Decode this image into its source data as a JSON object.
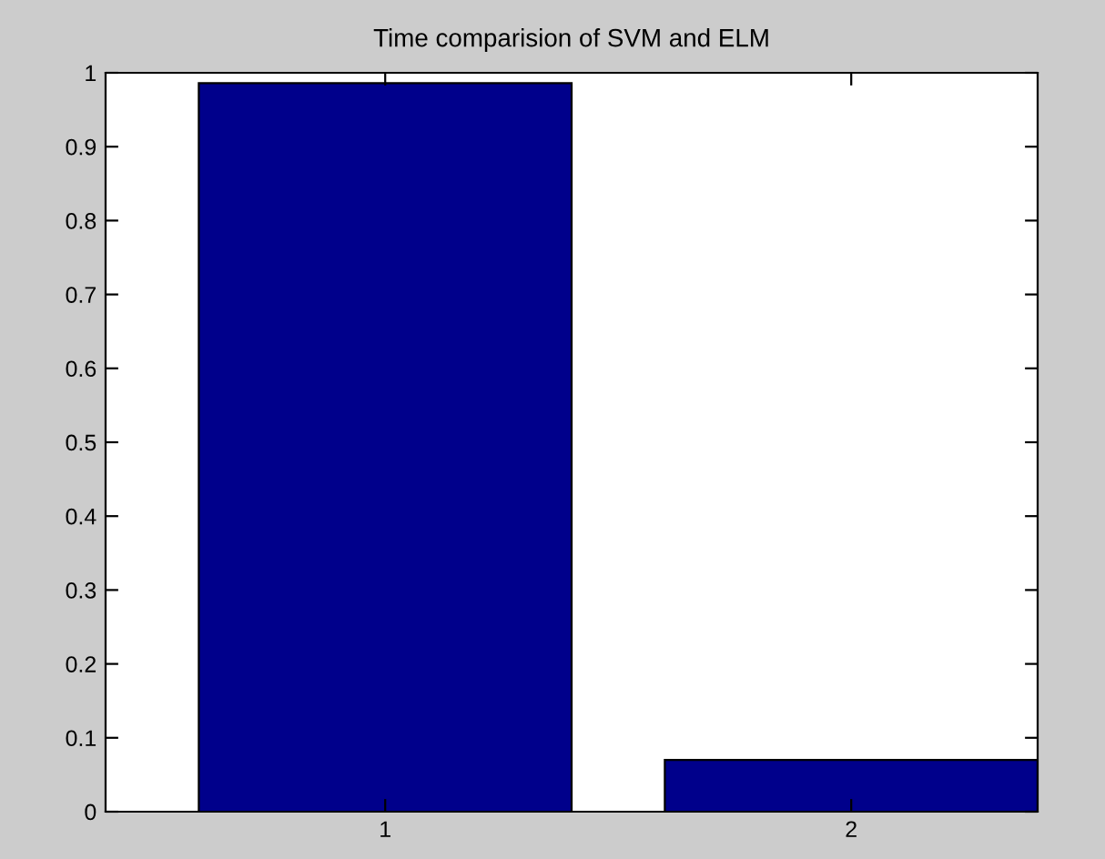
{
  "chart_data": {
    "type": "bar",
    "title": "Time comparision of SVM and ELM",
    "x": [
      1,
      2
    ],
    "values": [
      0.986,
      0.07
    ],
    "color": "#00008b",
    "xlim": [
      0.4,
      2.4
    ],
    "xticks": [
      1,
      2
    ],
    "ylim": [
      0,
      1
    ],
    "yticks": [
      0,
      0.1,
      0.2,
      0.3,
      0.4,
      0.5,
      0.6,
      0.7,
      0.8,
      0.9,
      1
    ],
    "grid": false,
    "legend": false
  }
}
